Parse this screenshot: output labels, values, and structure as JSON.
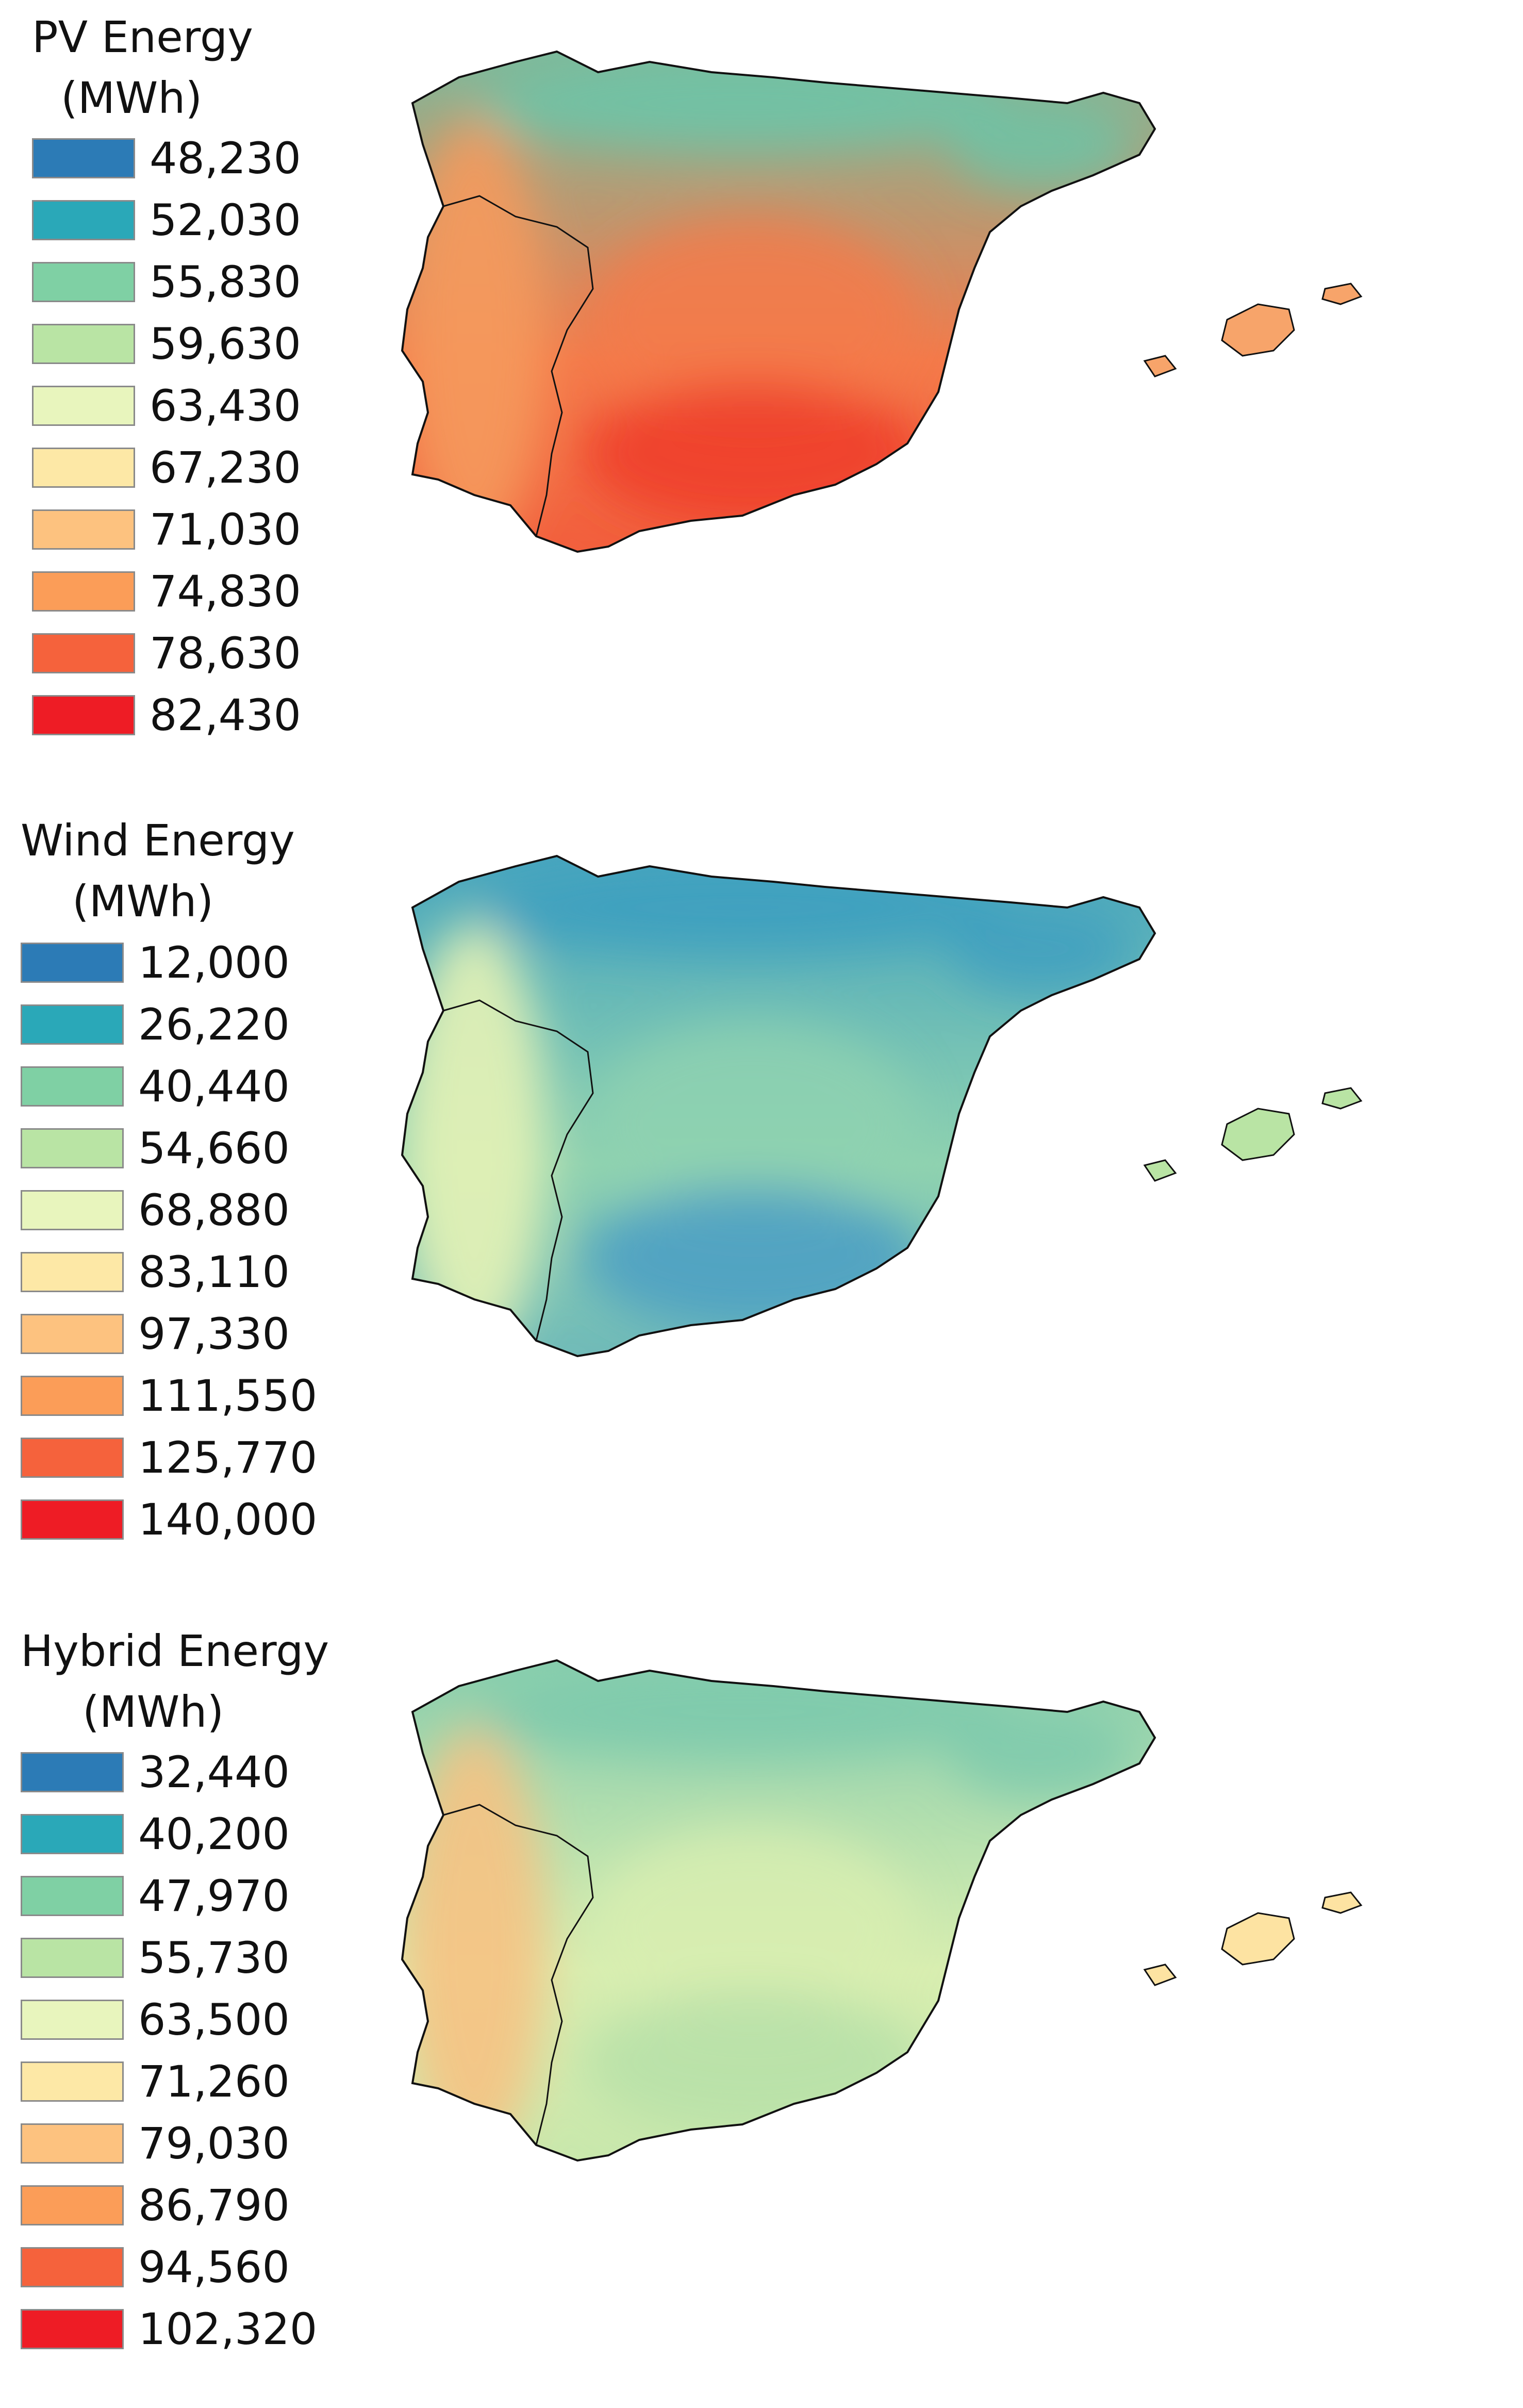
{
  "panels": [
    {
      "title_line1": "PV Energy",
      "title_line2": "(MWh)",
      "legend": [
        {
          "label": "48,230",
          "color": "#2c7bb6"
        },
        {
          "label": "52,030",
          "color": "#2aa8b8"
        },
        {
          "label": "55,830",
          "color": "#7fd0a4"
        },
        {
          "label": "59,630",
          "color": "#b9e4a4"
        },
        {
          "label": "63,430",
          "color": "#e8f5bd"
        },
        {
          "label": "67,230",
          "color": "#fde8a6"
        },
        {
          "label": "71,030",
          "color": "#fdc27f"
        },
        {
          "label": "74,830",
          "color": "#fb9d58"
        },
        {
          "label": "78,630",
          "color": "#f5623c"
        },
        {
          "label": "82,430",
          "color": "#ee1c25"
        }
      ],
      "regions": {
        "north": "#6cc4a8",
        "center": "#f47a4a",
        "south": "#ef3c2c",
        "portugal": "#f59a5c",
        "islands": "#f7a46a"
      }
    },
    {
      "title_line1": "Wind Energy",
      "title_line2": "(MWh)",
      "legend": [
        {
          "label": "12,000",
          "color": "#2c7bb6"
        },
        {
          "label": "26,220",
          "color": "#2aa8b8"
        },
        {
          "label": "40,440",
          "color": "#7fd0a4"
        },
        {
          "label": "54,660",
          "color": "#b9e4a4"
        },
        {
          "label": "68,880",
          "color": "#e8f5bd"
        },
        {
          "label": "83,110",
          "color": "#fde8a6"
        },
        {
          "label": "97,330",
          "color": "#fdc27f"
        },
        {
          "label": "111,550",
          "color": "#fb9d58"
        },
        {
          "label": "125,770",
          "color": "#f5623c"
        },
        {
          "label": "140,000",
          "color": "#ee1c25"
        }
      ],
      "regions": {
        "north": "#3d9fc0",
        "center": "#8fd2b0",
        "south": "#4a9dc4",
        "portugal": "#e6f2b6",
        "islands": "#b9e4a4"
      }
    },
    {
      "title_line1": "Hybrid Energy",
      "title_line2": "(MWh)",
      "legend": [
        {
          "label": "32,440",
          "color": "#2c7bb6"
        },
        {
          "label": "40,200",
          "color": "#2aa8b8"
        },
        {
          "label": "47,970",
          "color": "#7fd0a4"
        },
        {
          "label": "55,730",
          "color": "#b9e4a4"
        },
        {
          "label": "63,500",
          "color": "#e8f5bd"
        },
        {
          "label": "71,260",
          "color": "#fde8a6"
        },
        {
          "label": "79,030",
          "color": "#fdc27f"
        },
        {
          "label": "86,790",
          "color": "#fb9d58"
        },
        {
          "label": "94,560",
          "color": "#f5623c"
        },
        {
          "label": "102,320",
          "color": "#ee1c25"
        }
      ],
      "regions": {
        "north": "#7cc9ad",
        "center": "#d8eeb0",
        "south": "#b6e0a8",
        "portugal": "#f6c283",
        "islands": "#fde3a2"
      }
    }
  ]
}
